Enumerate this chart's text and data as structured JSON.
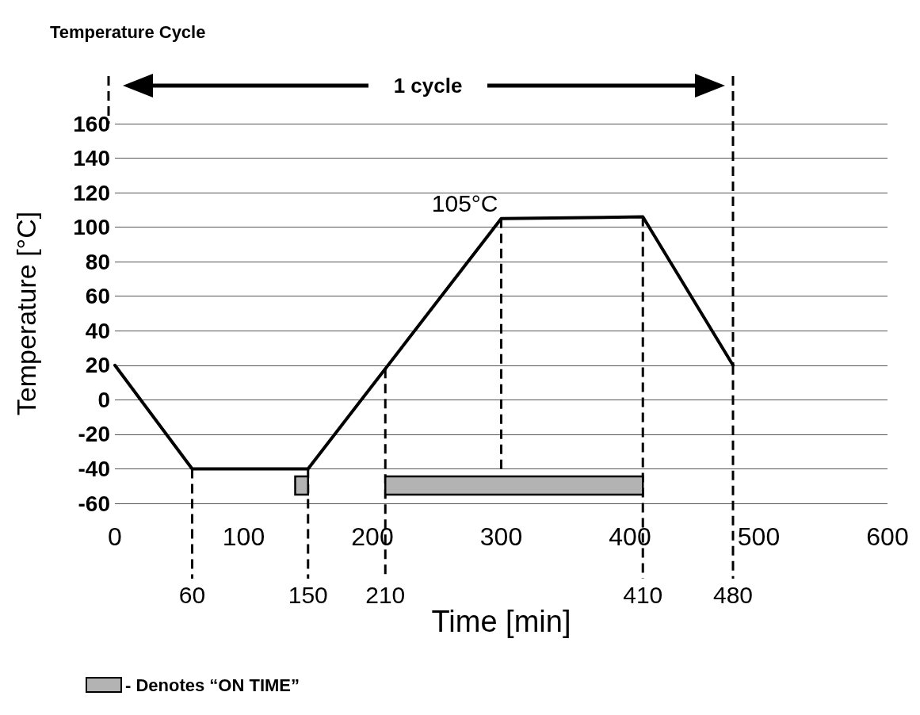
{
  "chart_data": {
    "type": "line",
    "title": "Temperature Cycle",
    "xlabel": "Time [min]",
    "ylabel": "Temperature [°C]",
    "x": [
      0,
      60,
      150,
      300,
      410,
      480
    ],
    "series": [
      {
        "color": "#000000",
        "values": [
          20,
          -40,
          -40,
          105,
          106,
          20
        ]
      }
    ],
    "xlim": [
      0,
      600
    ],
    "xticks": [
      0,
      100,
      200,
      300,
      400,
      500,
      600
    ],
    "ylim": [
      -60,
      160
    ],
    "yticks": [
      -60,
      -40,
      -20,
      0,
      20,
      40,
      60,
      80,
      100,
      120,
      140,
      160
    ],
    "grid": "y",
    "marker": "none",
    "line_style": "solid",
    "legend": "bottom left",
    "ref_lines": [
      {
        "axis": "x",
        "value": 60,
        "label": "60"
      },
      {
        "axis": "x",
        "value": 150,
        "label": "150"
      },
      {
        "axis": "x",
        "value": 210,
        "label": "210"
      },
      {
        "axis": "x",
        "value": 300,
        "label": null
      },
      {
        "axis": "x",
        "value": 410,
        "label": "410"
      },
      {
        "axis": "x",
        "value": 480,
        "label": "480"
      }
    ],
    "bands": [
      {
        "axis": "x",
        "from": 140,
        "to": 150,
        "label": "- Denotes “ON TIME”",
        "color": "#b3b3b3"
      },
      {
        "axis": "x",
        "from": 210,
        "to": 410,
        "color": "#b3b3b3"
      }
    ],
    "annotations": [
      {
        "text": "105°C",
        "x": 300,
        "y": 105
      },
      "1 cycle"
    ]
  }
}
